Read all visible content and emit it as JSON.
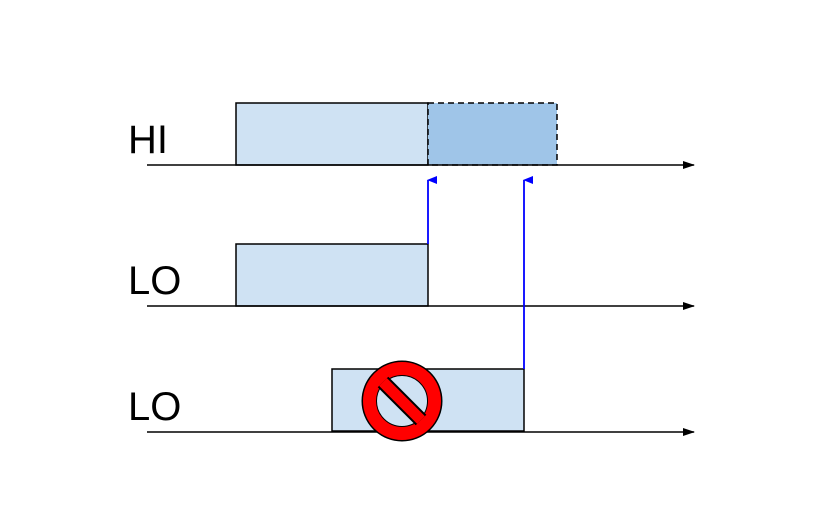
{
  "rows": [
    {
      "label": "HI"
    },
    {
      "label": "LO"
    },
    {
      "label": "LO"
    }
  ],
  "colors": {
    "box_fill": "#cfe2f3",
    "extension_fill": "#9fc5e8",
    "outline": "#000000",
    "arrow": "#0000ff",
    "timeline": "#000000",
    "prohibit_fill": "#ff0000",
    "prohibit_stroke": "#000000"
  },
  "icons": {
    "prohibited": "no-entry-sign-icon"
  }
}
